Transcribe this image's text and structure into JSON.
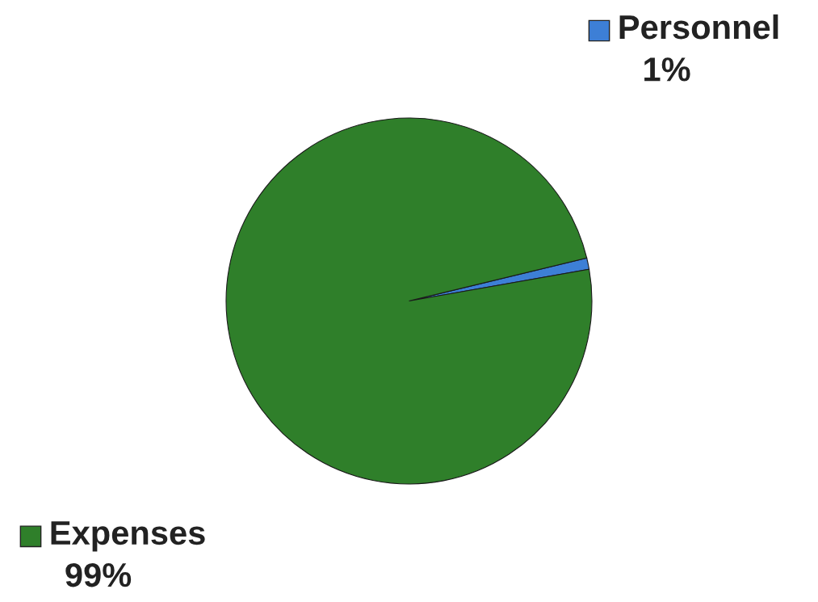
{
  "chart_data": {
    "type": "pie",
    "categories": [
      "Personnel",
      "Expenses"
    ],
    "values": [
      1,
      99
    ],
    "value_labels": [
      "1%",
      "99%"
    ],
    "colors": [
      "#3d7fd6",
      "#2f7f2a"
    ],
    "legend": "top right"
  }
}
